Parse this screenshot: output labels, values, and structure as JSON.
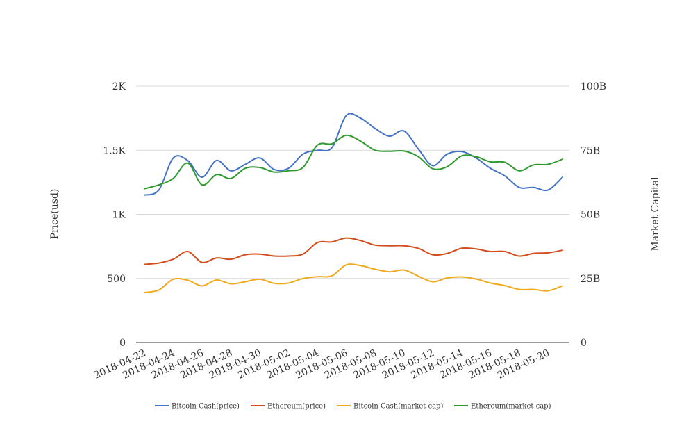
{
  "chart_data": {
    "type": "line",
    "x": [
      "2018-04-22",
      "2018-04-23",
      "2018-04-24",
      "2018-04-25",
      "2018-04-26",
      "2018-04-27",
      "2018-04-28",
      "2018-04-29",
      "2018-04-30",
      "2018-05-01",
      "2018-05-02",
      "2018-05-03",
      "2018-05-04",
      "2018-05-05",
      "2018-05-06",
      "2018-05-07",
      "2018-05-08",
      "2018-05-09",
      "2018-05-10",
      "2018-05-11",
      "2018-05-12",
      "2018-05-13",
      "2018-05-14",
      "2018-05-15",
      "2018-05-16",
      "2018-05-17",
      "2018-05-18",
      "2018-05-19",
      "2018-05-20",
      "2018-05-21"
    ],
    "x_tick_labels": [
      "2018-04-22",
      "2018-04-24",
      "2018-04-26",
      "2018-04-28",
      "2018-04-30",
      "2018-05-02",
      "2018-05-04",
      "2018-05-06",
      "2018-05-08",
      "2018-05-10",
      "2018-05-12",
      "2018-05-14",
      "2018-05-16",
      "2018-05-18",
      "2018-05-20"
    ],
    "y_left": {
      "label": "Price(usd)",
      "ylim": [
        0,
        2000
      ],
      "ticks": [
        0,
        500,
        1000,
        1500,
        2000
      ],
      "tick_labels": [
        "0",
        "500",
        "1K",
        "1.5K",
        "2K"
      ]
    },
    "y_right": {
      "label": "Market Capital",
      "ylim": [
        0,
        100000000000
      ],
      "ticks": [
        0,
        25000000000,
        50000000000,
        75000000000,
        100000000000
      ],
      "tick_labels": [
        "0",
        "25B",
        "50B",
        "75B",
        "100B"
      ]
    },
    "grid": true,
    "legend_position": "bottom",
    "series": [
      {
        "name": "Bitcoin Cash(price)",
        "axis": "left",
        "color": "#4472c4",
        "values": [
          1150,
          1190,
          1440,
          1420,
          1290,
          1420,
          1340,
          1390,
          1440,
          1350,
          1360,
          1470,
          1500,
          1520,
          1770,
          1750,
          1670,
          1610,
          1650,
          1510,
          1380,
          1470,
          1490,
          1440,
          1360,
          1300,
          1210,
          1210,
          1190,
          1290
        ]
      },
      {
        "name": "Ethereum(price)",
        "axis": "left",
        "color": "#d24d1d",
        "values": [
          610,
          620,
          650,
          710,
          625,
          660,
          650,
          685,
          690,
          675,
          675,
          690,
          780,
          785,
          815,
          795,
          760,
          755,
          755,
          735,
          685,
          695,
          735,
          730,
          710,
          710,
          675,
          695,
          700,
          720
        ]
      },
      {
        "name": "Bitcoin Cash(market cap)",
        "axis": "right",
        "color": "#f0a91b",
        "values": [
          19500000000,
          20500000000,
          24700000000,
          24300000000,
          22100000000,
          24400000000,
          22900000000,
          23700000000,
          24700000000,
          23100000000,
          23200000000,
          25000000000,
          25700000000,
          26000000000,
          30300000000,
          30000000000,
          28600000000,
          27600000000,
          28300000000,
          25900000000,
          23700000000,
          25200000000,
          25600000000,
          24800000000,
          23200000000,
          22200000000,
          20700000000,
          20700000000,
          20200000000,
          22100000000
        ]
      },
      {
        "name": "Ethereum(market cap)",
        "axis": "right",
        "color": "#2e9a2e",
        "values": [
          60000000000,
          61500000000,
          64000000000,
          70000000000,
          61500000000,
          65500000000,
          64000000000,
          68000000000,
          68300000000,
          66500000000,
          67000000000,
          68300000000,
          77000000000,
          77500000000,
          80800000000,
          78500000000,
          75000000000,
          74600000000,
          74700000000,
          72500000000,
          67800000000,
          68600000000,
          72800000000,
          72500000000,
          70500000000,
          70300000000,
          67000000000,
          69300000000,
          69500000000,
          71500000000
        ]
      }
    ]
  }
}
